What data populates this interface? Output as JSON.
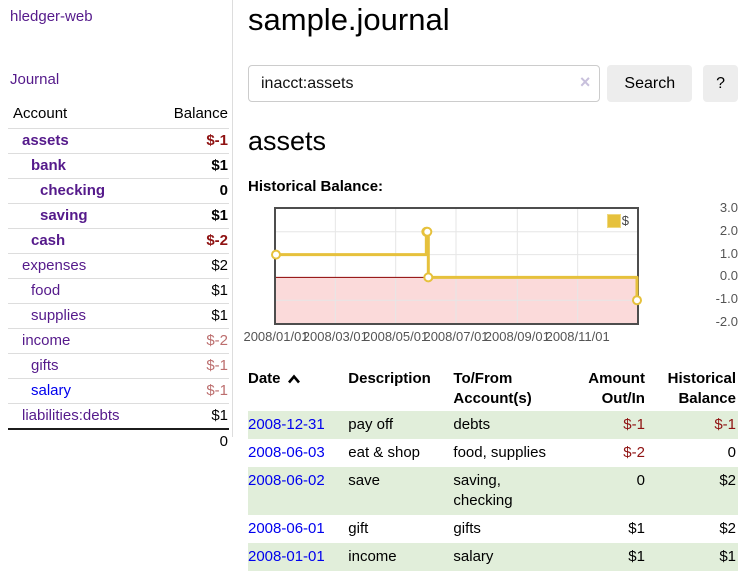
{
  "sidebar": {
    "brand": "hledger-web",
    "nav": {
      "journal": "Journal"
    },
    "table": {
      "headers": {
        "account": "Account",
        "balance": "Balance"
      },
      "rows": [
        {
          "name": "assets",
          "depth": 1,
          "bold": true,
          "color": "purple",
          "balance": "$-1",
          "bal_style": "negStrong"
        },
        {
          "name": "bank",
          "depth": 2,
          "bold": true,
          "color": "purple",
          "balance": "$1",
          "bal_style": "pos"
        },
        {
          "name": "checking",
          "depth": 3,
          "bold": true,
          "color": "purple",
          "balance": "0",
          "bal_style": "pos"
        },
        {
          "name": "saving",
          "depth": 3,
          "bold": true,
          "color": "purple",
          "balance": "$1",
          "bal_style": "pos"
        },
        {
          "name": "cash",
          "depth": 2,
          "bold": true,
          "color": "purple",
          "balance": "$-2",
          "bal_style": "negStrong"
        },
        {
          "name": "expenses",
          "depth": 1,
          "bold": false,
          "color": "purple",
          "balance": "$2",
          "bal_style": "pos"
        },
        {
          "name": "food",
          "depth": 2,
          "bold": false,
          "color": "purple",
          "balance": "$1",
          "bal_style": "pos"
        },
        {
          "name": "supplies",
          "depth": 2,
          "bold": false,
          "color": "purple",
          "balance": "$1",
          "bal_style": "pos"
        },
        {
          "name": "income",
          "depth": 1,
          "bold": false,
          "color": "purple",
          "balance": "$-2",
          "bal_style": "negSoft"
        },
        {
          "name": "gifts",
          "depth": 2,
          "bold": false,
          "color": "purple",
          "balance": "$-1",
          "bal_style": "negSoft"
        },
        {
          "name": "salary",
          "depth": 2,
          "bold": false,
          "color": "blue",
          "balance": "$-1",
          "bal_style": "negSoft"
        },
        {
          "name": "liabilities:debts",
          "depth": 1,
          "bold": false,
          "color": "purple",
          "balance": "$1",
          "bal_style": "pos"
        }
      ],
      "total": "0"
    }
  },
  "main": {
    "title": "sample.journal",
    "search": {
      "value": "inacct:assets",
      "clear_icon": "×",
      "button": "Search",
      "help": "?"
    },
    "account_heading": "assets",
    "chart_label": "Historical Balance:"
  },
  "chart_data": {
    "type": "line",
    "step": true,
    "title": "Historical Balance:",
    "series": [
      {
        "name": "$",
        "points": [
          {
            "date": "2008-01-01",
            "value": 1
          },
          {
            "date": "2008-06-01",
            "value": 2
          },
          {
            "date": "2008-06-02",
            "value": 2
          },
          {
            "date": "2008-06-03",
            "value": 0
          },
          {
            "date": "2008-12-31",
            "value": -1
          }
        ]
      }
    ],
    "x_range": [
      "2008-01-01",
      "2008-12-31"
    ],
    "x_ticks": [
      "2008/01/01",
      "2008/03/01",
      "2008/05/01",
      "2008/07/01",
      "2008/09/01",
      "2008/11/01"
    ],
    "y_ticks": [
      3.0,
      2.0,
      1.0,
      0.0,
      -1.0,
      -2.0
    ],
    "ylim": [
      -2,
      3
    ],
    "grid": true,
    "legend": {
      "label": "$",
      "position": "top-right"
    },
    "colors": {
      "line": "#e6c13c",
      "marker_fill": "#ffffff",
      "negative_region": "#fbdada",
      "zero_line": "#8b0000",
      "gridline": "#e6e6e6",
      "border": "#4d4d4d",
      "tick_text": "#545454"
    }
  },
  "register": {
    "headers": {
      "date": "Date",
      "description": "Description",
      "accounts": "To/From Account(s)",
      "amount": "Amount Out/In",
      "balance": "Historical Balance"
    },
    "rows": [
      {
        "date": "2008-12-31",
        "description": "pay off",
        "accounts": "debts",
        "amount": "$-1",
        "amount_neg": true,
        "balance": "$-1",
        "balance_neg": true
      },
      {
        "date": "2008-06-03",
        "description": "eat & shop",
        "accounts": "food, supplies",
        "amount": "$-2",
        "amount_neg": true,
        "balance": "0",
        "balance_neg": false
      },
      {
        "date": "2008-06-02",
        "description": "save",
        "accounts": "saving, checking",
        "amount": "0",
        "amount_neg": false,
        "balance": "$2",
        "balance_neg": false
      },
      {
        "date": "2008-06-01",
        "description": "gift",
        "accounts": "gifts",
        "amount": "$1",
        "amount_neg": false,
        "balance": "$2",
        "balance_neg": false
      },
      {
        "date": "2008-01-01",
        "description": "income",
        "accounts": "salary",
        "amount": "$1",
        "amount_neg": false,
        "balance": "$1",
        "balance_neg": false
      }
    ]
  }
}
